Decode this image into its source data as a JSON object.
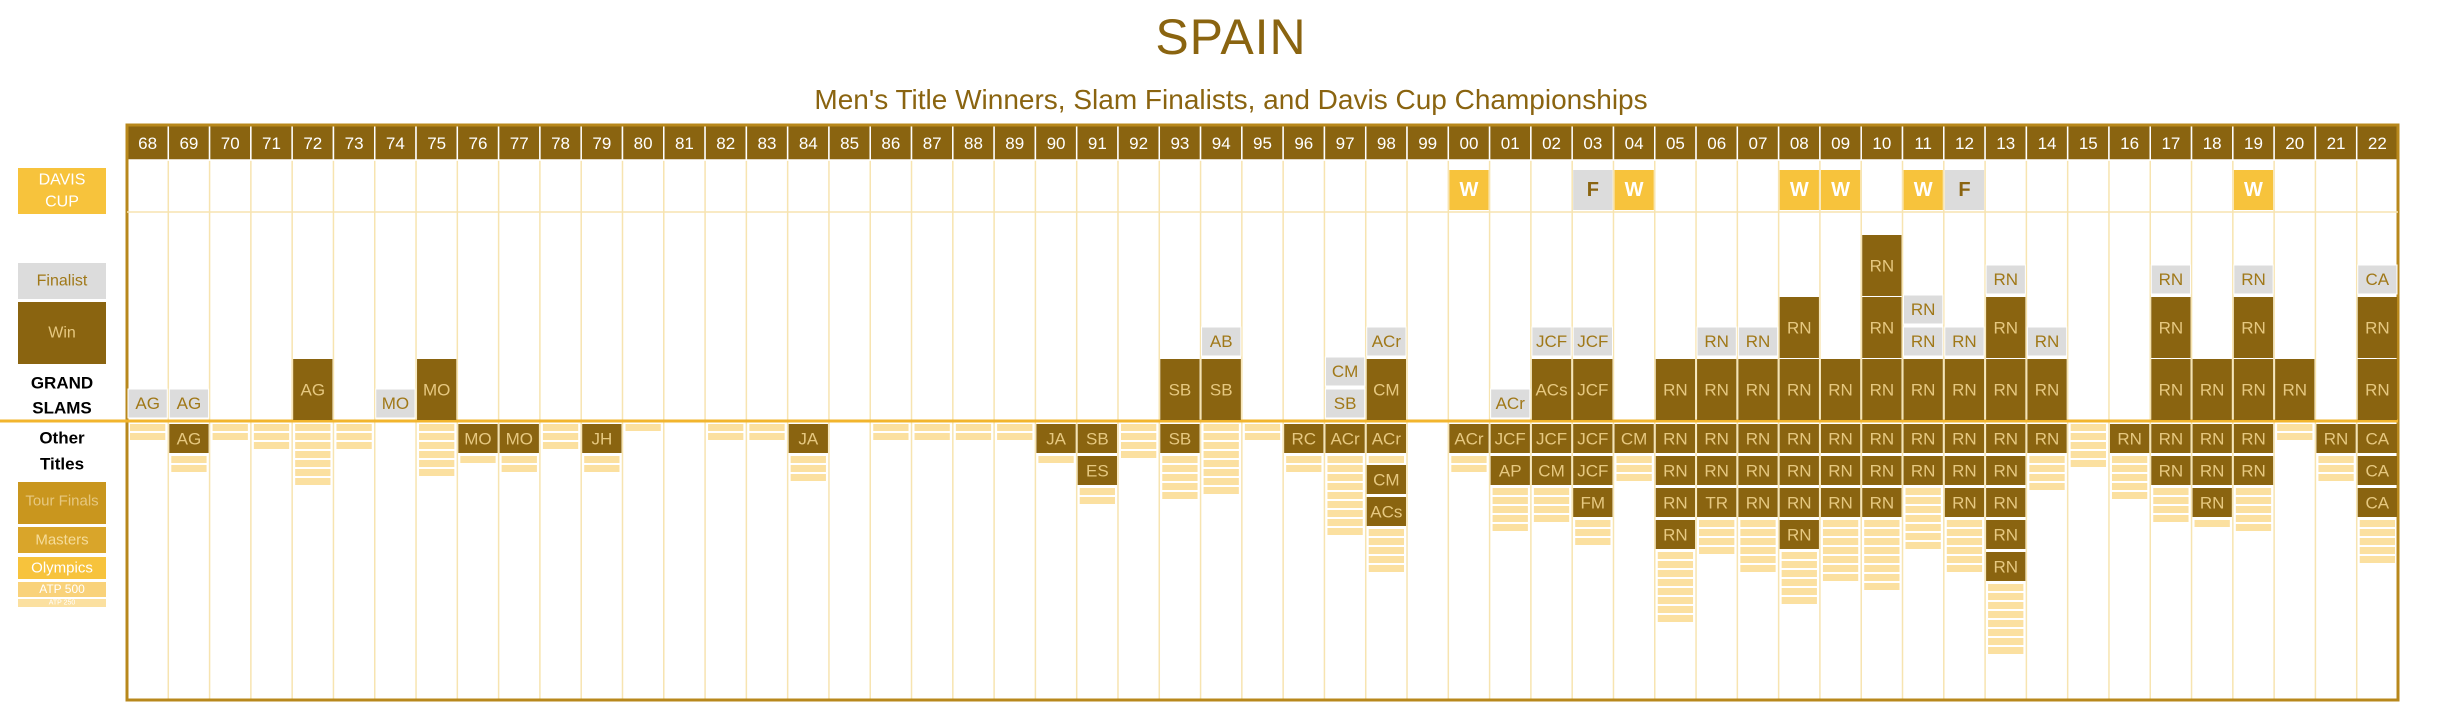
{
  "title": "SPAIN",
  "subtitle": "Men's Title Winners, Slam Finalists, and Davis Cup Championships",
  "legend": {
    "davis_cup": [
      "DAVIS",
      "CUP"
    ],
    "finalist": "Finalist",
    "win": "Win",
    "grand_slams": [
      "GRAND",
      "SLAMS"
    ],
    "other_titles": [
      "Other",
      "Titles"
    ],
    "tour_finals": "Tour Finals",
    "masters": "Masters",
    "olympics": "Olympics",
    "atp500": "ATP 500",
    "atp250": "ATP 250"
  },
  "colors": {
    "border": "#b8881c",
    "header": "#8a6410",
    "dark": "#8a6410",
    "gold": "#f7c33c",
    "pale": "#fbe0a0",
    "gray": "#dcdcdc",
    "text_light": "#e6c880",
    "text_dark": "#a07818"
  },
  "chart_data": {
    "type": "table",
    "years": [
      "68",
      "69",
      "70",
      "71",
      "72",
      "73",
      "74",
      "75",
      "76",
      "77",
      "78",
      "79",
      "80",
      "81",
      "82",
      "83",
      "84",
      "85",
      "86",
      "87",
      "88",
      "89",
      "90",
      "91",
      "92",
      "93",
      "94",
      "95",
      "96",
      "97",
      "98",
      "99",
      "00",
      "01",
      "02",
      "03",
      "04",
      "05",
      "06",
      "07",
      "08",
      "09",
      "10",
      "11",
      "12",
      "13",
      "14",
      "15",
      "16",
      "17",
      "18",
      "19",
      "20",
      "21",
      "22"
    ],
    "davis_cup": [
      {
        "year": "00",
        "result": "W"
      },
      {
        "year": "03",
        "result": "F"
      },
      {
        "year": "04",
        "result": "W"
      },
      {
        "year": "08",
        "result": "W"
      },
      {
        "year": "09",
        "result": "W"
      },
      {
        "year": "11",
        "result": "W"
      },
      {
        "year": "12",
        "result": "F"
      },
      {
        "year": "19",
        "result": "W"
      }
    ],
    "grand_slams": [
      {
        "year": "68",
        "wins": [],
        "finals": [
          "AG"
        ]
      },
      {
        "year": "69",
        "wins": [],
        "finals": [
          "AG"
        ]
      },
      {
        "year": "72",
        "wins": [
          "AG"
        ],
        "finals": []
      },
      {
        "year": "74",
        "wins": [],
        "finals": [
          "MO"
        ]
      },
      {
        "year": "75",
        "wins": [
          "MO"
        ],
        "finals": []
      },
      {
        "year": "93",
        "wins": [
          "SB"
        ],
        "finals": []
      },
      {
        "year": "94",
        "wins": [
          "SB"
        ],
        "finals": [
          "AB"
        ]
      },
      {
        "year": "97",
        "wins": [],
        "finals": [
          "SB",
          "CM"
        ]
      },
      {
        "year": "98",
        "wins": [
          "CM"
        ],
        "finals": [
          "ACr"
        ]
      },
      {
        "year": "01",
        "wins": [],
        "finals": [
          "ACr"
        ]
      },
      {
        "year": "02",
        "wins": [
          "ACs"
        ],
        "finals": [
          "JCF"
        ]
      },
      {
        "year": "03",
        "wins": [
          "JCF"
        ],
        "finals": [
          "JCF"
        ]
      },
      {
        "year": "05",
        "wins": [
          "RN"
        ],
        "finals": []
      },
      {
        "year": "06",
        "wins": [
          "RN"
        ],
        "finals": [
          "RN"
        ]
      },
      {
        "year": "07",
        "wins": [
          "RN"
        ],
        "finals": [
          "RN"
        ]
      },
      {
        "year": "08",
        "wins": [
          "RN",
          "RN"
        ],
        "finals": []
      },
      {
        "year": "09",
        "wins": [
          "RN"
        ],
        "finals": []
      },
      {
        "year": "10",
        "wins": [
          "RN",
          "RN",
          "RN"
        ],
        "finals": []
      },
      {
        "year": "11",
        "wins": [
          "RN"
        ],
        "finals": [
          "RN",
          "RN"
        ]
      },
      {
        "year": "12",
        "wins": [
          "RN"
        ],
        "finals": [
          "RN"
        ]
      },
      {
        "year": "13",
        "wins": [
          "RN",
          "RN"
        ],
        "finals": [
          "RN"
        ]
      },
      {
        "year": "14",
        "wins": [
          "RN"
        ],
        "finals": [
          "RN"
        ]
      },
      {
        "year": "17",
        "wins": [
          "RN",
          "RN"
        ],
        "finals": [
          "RN"
        ]
      },
      {
        "year": "18",
        "wins": [
          "RN"
        ],
        "finals": []
      },
      {
        "year": "19",
        "wins": [
          "RN",
          "RN"
        ],
        "finals": [
          "RN"
        ]
      },
      {
        "year": "20",
        "wins": [
          "RN"
        ],
        "finals": []
      },
      {
        "year": "22",
        "wins": [
          "RN",
          "RN"
        ],
        "finals": [
          "CA"
        ]
      }
    ],
    "other_titles": [
      {
        "year": "68",
        "rows": [
          "p",
          "p"
        ]
      },
      {
        "year": "69",
        "rows": [
          "d:AG",
          "p",
          "p"
        ]
      },
      {
        "year": "70",
        "rows": [
          "p",
          "p"
        ]
      },
      {
        "year": "71",
        "rows": [
          "p",
          "p",
          "p"
        ]
      },
      {
        "year": "72",
        "rows": [
          "p",
          "p",
          "p",
          "p",
          "p",
          "p",
          "p"
        ]
      },
      {
        "year": "73",
        "rows": [
          "p",
          "p",
          "p"
        ]
      },
      {
        "year": "75",
        "rows": [
          "p",
          "p",
          "p",
          "p",
          "p",
          "p"
        ]
      },
      {
        "year": "76",
        "rows": [
          "d:MO",
          "p"
        ]
      },
      {
        "year": "77",
        "rows": [
          "d:MO",
          "p",
          "p"
        ]
      },
      {
        "year": "78",
        "rows": [
          "p",
          "p",
          "p"
        ]
      },
      {
        "year": "79",
        "rows": [
          "d:JH",
          "p",
          "p"
        ]
      },
      {
        "year": "80",
        "rows": [
          "p"
        ]
      },
      {
        "year": "82",
        "rows": [
          "p",
          "p"
        ]
      },
      {
        "year": "83",
        "rows": [
          "p",
          "p"
        ]
      },
      {
        "year": "84",
        "rows": [
          "d:JA",
          "p",
          "p",
          "p"
        ]
      },
      {
        "year": "86",
        "rows": [
          "p",
          "p"
        ]
      },
      {
        "year": "87",
        "rows": [
          "p",
          "p"
        ]
      },
      {
        "year": "88",
        "rows": [
          "p",
          "p"
        ]
      },
      {
        "year": "89",
        "rows": [
          "p",
          "p"
        ]
      },
      {
        "year": "90",
        "rows": [
          "d:JA",
          "p"
        ]
      },
      {
        "year": "91",
        "rows": [
          "d:SB",
          "d:ES",
          "p",
          "p"
        ]
      },
      {
        "year": "92",
        "rows": [
          "p",
          "p",
          "p",
          "p"
        ]
      },
      {
        "year": "93",
        "rows": [
          "d:SB",
          "p",
          "p",
          "p",
          "p",
          "p"
        ]
      },
      {
        "year": "94",
        "rows": [
          "p",
          "p",
          "p",
          "p",
          "p",
          "p",
          "p",
          "p"
        ]
      },
      {
        "year": "95",
        "rows": [
          "p",
          "p"
        ]
      },
      {
        "year": "96",
        "rows": [
          "d:RC",
          "p",
          "p"
        ]
      },
      {
        "year": "97",
        "rows": [
          "d:ACr",
          "p",
          "p",
          "p",
          "p",
          "p",
          "p",
          "p",
          "p",
          "p"
        ]
      },
      {
        "year": "98",
        "rows": [
          "d:ACr",
          "p",
          "d:CM",
          "d:ACs",
          "p",
          "p",
          "p",
          "p",
          "p"
        ]
      },
      {
        "year": "00",
        "rows": [
          "d:ACr",
          "p",
          "p"
        ]
      },
      {
        "year": "01",
        "rows": [
          "d:JCF",
          "d:AP",
          "p",
          "p",
          "p",
          "p",
          "p"
        ]
      },
      {
        "year": "02",
        "rows": [
          "d:JCF",
          "d:CM",
          "p",
          "p",
          "p",
          "p"
        ]
      },
      {
        "year": "03",
        "rows": [
          "d:JCF",
          "d:JCF",
          "d:FM",
          "p",
          "p",
          "p"
        ]
      },
      {
        "year": "04",
        "rows": [
          "d:CM",
          "p",
          "p",
          "p"
        ]
      },
      {
        "year": "05",
        "rows": [
          "d:RN",
          "d:RN",
          "d:RN",
          "d:RN",
          "p",
          "p",
          "p",
          "p",
          "p",
          "p",
          "p",
          "p"
        ]
      },
      {
        "year": "06",
        "rows": [
          "d:RN",
          "d:RN",
          "d:TR",
          "p",
          "p",
          "p",
          "p"
        ]
      },
      {
        "year": "07",
        "rows": [
          "d:RN",
          "d:RN",
          "d:RN",
          "p",
          "p",
          "p",
          "p",
          "p",
          "p"
        ]
      },
      {
        "year": "08",
        "rows": [
          "d:RN",
          "d:RN",
          "d:RN",
          "d:RN",
          "p",
          "p",
          "p",
          "p",
          "p",
          "p"
        ]
      },
      {
        "year": "09",
        "rows": [
          "d:RN",
          "d:RN",
          "d:RN",
          "p",
          "p",
          "p",
          "p",
          "p",
          "p",
          "p"
        ]
      },
      {
        "year": "10",
        "rows": [
          "d:RN",
          "d:RN",
          "d:RN",
          "p",
          "p",
          "p",
          "p",
          "p",
          "p",
          "p",
          "p"
        ]
      },
      {
        "year": "11",
        "rows": [
          "d:RN",
          "d:RN",
          "p",
          "p",
          "p",
          "p",
          "p",
          "p",
          "p"
        ]
      },
      {
        "year": "12",
        "rows": [
          "d:RN",
          "d:RN",
          "d:RN",
          "p",
          "p",
          "p",
          "p",
          "p",
          "p"
        ]
      },
      {
        "year": "13",
        "rows": [
          "d:RN",
          "d:RN",
          "d:RN",
          "d:RN",
          "d:RN",
          "p",
          "p",
          "p",
          "p",
          "p",
          "p",
          "p",
          "p"
        ]
      },
      {
        "year": "14",
        "rows": [
          "d:RN",
          "p",
          "p",
          "p",
          "p"
        ]
      },
      {
        "year": "15",
        "rows": [
          "p",
          "p",
          "p",
          "p",
          "p"
        ]
      },
      {
        "year": "16",
        "rows": [
          "d:RN",
          "p",
          "p",
          "p",
          "p",
          "p"
        ]
      },
      {
        "year": "17",
        "rows": [
          "d:RN",
          "d:RN",
          "p",
          "p",
          "p",
          "p"
        ]
      },
      {
        "year": "18",
        "rows": [
          "d:RN",
          "d:RN",
          "d:RN",
          "p"
        ]
      },
      {
        "year": "19",
        "rows": [
          "d:RN",
          "d:RN",
          "p",
          "p",
          "p",
          "p",
          "p"
        ]
      },
      {
        "year": "20",
        "rows": [
          "p",
          "p"
        ]
      },
      {
        "year": "21",
        "rows": [
          "d:RN",
          "p",
          "p",
          "p"
        ]
      },
      {
        "year": "22",
        "rows": [
          "d:CA",
          "d:CA",
          "d:CA",
          "p",
          "p",
          "p",
          "p",
          "p"
        ]
      }
    ]
  }
}
